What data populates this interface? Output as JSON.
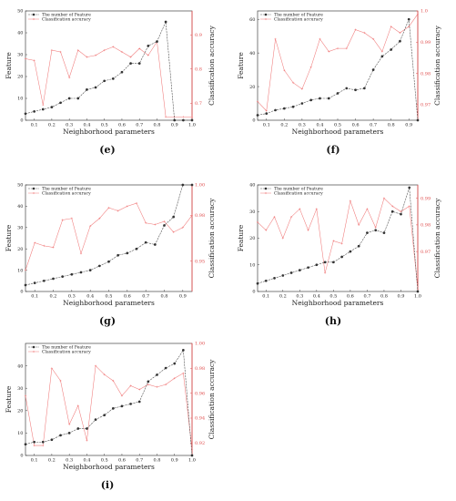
{
  "figure": {
    "colors": {
      "feature": "#333333",
      "accuracy": "#f07a7a",
      "axis_right": "#e05050"
    }
  },
  "chart_data": [
    {
      "type": "line",
      "panel_label": "(e)",
      "x": [
        0.05,
        0.1,
        0.15,
        0.2,
        0.25,
        0.3,
        0.35,
        0.4,
        0.45,
        0.5,
        0.55,
        0.6,
        0.65,
        0.7,
        0.75,
        0.8,
        0.85,
        0.9,
        0.95,
        1.0
      ],
      "xticks": [
        "0.1",
        "0.2",
        "0.3",
        "0.4",
        "0.5",
        "0.6",
        "0.7",
        "0.8",
        "0.9",
        "1.0"
      ],
      "xlim": [
        0.05,
        1.0
      ],
      "xlabel": "Neighborhood parameters",
      "ylabel_left": "Feature",
      "ylabel_right": "Classification accuracy",
      "ylim_left": [
        0,
        50
      ],
      "yticks_left": [
        "0",
        "10",
        "20",
        "30",
        "40",
        "50"
      ],
      "ylim_right": [
        0.65,
        0.97
      ],
      "yticks_right": [
        "0.7",
        "0.8",
        "0.9"
      ],
      "ytick_values_right": [
        0.7,
        0.8,
        0.9
      ],
      "series": [
        {
          "name": "The number of Feature",
          "axis": "left",
          "values": [
            3,
            4,
            5,
            6,
            8,
            10,
            10,
            14,
            15,
            18,
            19,
            22,
            26,
            26,
            34,
            36,
            45,
            0,
            0,
            0
          ]
        },
        {
          "name": "Classification accuracy",
          "axis": "right",
          "values": [
            0.83,
            0.825,
            0.695,
            0.855,
            0.85,
            0.775,
            0.855,
            0.835,
            0.84,
            0.855,
            0.865,
            0.85,
            0.835,
            0.86,
            0.84,
            0.88,
            0.66,
            0.66,
            0.66,
            0.66
          ]
        }
      ]
    },
    {
      "type": "line",
      "panel_label": "(f)",
      "x": [
        0.05,
        0.1,
        0.15,
        0.2,
        0.25,
        0.3,
        0.35,
        0.4,
        0.45,
        0.5,
        0.55,
        0.6,
        0.65,
        0.7,
        0.75,
        0.8,
        0.85,
        0.9,
        0.95
      ],
      "xticks": [
        "0.1",
        "0.2",
        "0.3",
        "0.4",
        "0.5",
        "0.6",
        "0.7",
        "0.8",
        "0.9"
      ],
      "xlim": [
        0.05,
        0.95
      ],
      "xlabel": "Neighborhood parameters",
      "ylabel_left": "Feature",
      "ylabel_right": "Classification accuracy",
      "ylim_left": [
        0,
        65
      ],
      "yticks_left": [
        "0",
        "20",
        "40",
        "60"
      ],
      "ylim_right": [
        0.965,
        1.0
      ],
      "yticks_right": [
        "0.97",
        "0.98",
        "0.99",
        "1.0"
      ],
      "ytick_values_right": [
        0.97,
        0.98,
        0.99,
        1.0
      ],
      "series": [
        {
          "name": "The number of Feature",
          "axis": "left",
          "values": [
            3,
            4,
            6,
            7,
            8,
            10,
            12,
            13,
            13,
            16,
            19,
            18,
            19,
            30,
            38,
            42,
            47,
            60,
            0
          ]
        },
        {
          "name": "Classification accuracy",
          "axis": "right",
          "values": [
            0.971,
            0.968,
            0.991,
            0.981,
            0.977,
            0.975,
            0.982,
            0.991,
            0.987,
            0.988,
            0.988,
            0.994,
            0.993,
            0.991,
            0.987,
            0.995,
            0.993,
            0.995,
            0.999
          ]
        }
      ]
    },
    {
      "type": "line",
      "panel_label": "(g)",
      "x": [
        0.05,
        0.1,
        0.15,
        0.2,
        0.25,
        0.3,
        0.35,
        0.4,
        0.45,
        0.5,
        0.55,
        0.6,
        0.65,
        0.7,
        0.75,
        0.8,
        0.85,
        0.9,
        0.95
      ],
      "xticks": [
        "0.1",
        "0.2",
        "0.3",
        "0.4",
        "0.5",
        "0.6",
        "0.7",
        "0.8",
        "0.9"
      ],
      "xlim": [
        0.05,
        0.95
      ],
      "xlabel": "Neighborhood parameters",
      "ylabel_left": "Feature",
      "ylabel_right": "Classification accuracy",
      "ylim_left": [
        0,
        50
      ],
      "yticks_left": [
        "0",
        "10",
        "20",
        "30",
        "40",
        "50"
      ],
      "ylim_right": [
        0.93,
        1.0
      ],
      "yticks_right": [
        "0.95",
        "0.98",
        "1.00"
      ],
      "ytick_values_right": [
        0.95,
        0.98,
        1.0
      ],
      "series": [
        {
          "name": "The number of Feature",
          "axis": "left",
          "values": [
            3,
            4,
            5,
            6,
            7,
            8,
            9,
            10,
            12,
            14,
            17,
            18,
            20,
            23,
            22,
            31,
            35,
            50,
            50
          ]
        },
        {
          "name": "Classification accuracy",
          "axis": "right",
          "values": [
            0.944,
            0.962,
            0.96,
            0.959,
            0.977,
            0.978,
            0.955,
            0.973,
            0.978,
            0.985,
            0.983,
            0.986,
            0.988,
            0.975,
            0.974,
            0.976,
            0.969,
            0.972,
            0.98
          ]
        }
      ]
    },
    {
      "type": "line",
      "panel_label": "(h)",
      "x": [
        0.05,
        0.1,
        0.15,
        0.2,
        0.25,
        0.3,
        0.35,
        0.4,
        0.45,
        0.5,
        0.55,
        0.6,
        0.65,
        0.7,
        0.75,
        0.8,
        0.85,
        0.9,
        0.95,
        1.0
      ],
      "xticks": [
        "0.1",
        "0.2",
        "0.3",
        "0.4",
        "0.5",
        "0.6",
        "0.7",
        "0.8",
        "0.9",
        "1.0"
      ],
      "xlim": [
        0.05,
        1.0
      ],
      "xlabel": "Neighborhood parameters",
      "ylabel_left": "Feature",
      "ylabel_right": "Classification accuracy",
      "ylim_left": [
        0,
        40
      ],
      "yticks_left": [
        "0",
        "10",
        "20",
        "30",
        "40"
      ],
      "ylim_right": [
        0.955,
        0.995
      ],
      "yticks_right": [
        "0.97",
        "0.98",
        "0.99"
      ],
      "ytick_values_right": [
        0.97,
        0.98,
        0.99
      ],
      "series": [
        {
          "name": "The number of Feature",
          "axis": "left",
          "values": [
            3,
            4,
            5,
            6,
            7,
            8,
            9,
            10,
            11,
            11,
            13,
            15,
            17,
            22,
            23,
            22,
            30,
            29,
            39,
            0
          ]
        },
        {
          "name": "Classification accuracy",
          "axis": "right",
          "values": [
            0.981,
            0.978,
            0.983,
            0.975,
            0.983,
            0.986,
            0.978,
            0.986,
            0.962,
            0.974,
            0.973,
            0.989,
            0.98,
            0.986,
            0.979,
            0.99,
            0.987,
            0.985,
            0.987,
            0.956
          ]
        }
      ]
    },
    {
      "type": "line",
      "panel_label": "(i)",
      "x": [
        0.05,
        0.1,
        0.15,
        0.2,
        0.25,
        0.3,
        0.35,
        0.4,
        0.45,
        0.5,
        0.55,
        0.6,
        0.65,
        0.7,
        0.75,
        0.8,
        0.85,
        0.9,
        0.95,
        1.0
      ],
      "xticks": [
        "0.1",
        "0.2",
        "0.3",
        "0.4",
        "0.5",
        "0.6",
        "0.7",
        "0.8",
        "0.9",
        "1.0"
      ],
      "xlim": [
        0.05,
        1.0
      ],
      "xlabel": "Neighborhood parameters",
      "ylabel_left": "Feature",
      "ylabel_right": "Classification accuracy",
      "ylim_left": [
        0,
        50
      ],
      "yticks_left": [
        "0",
        "10",
        "20",
        "30",
        "40"
      ],
      "ylim_right": [
        0.91,
        1.0
      ],
      "yticks_right": [
        "0.92",
        "0.94",
        "0.96",
        "0.98",
        "1.00"
      ],
      "ytick_values_right": [
        0.92,
        0.94,
        0.96,
        0.98,
        1.0
      ],
      "series": [
        {
          "name": "The number of Feature",
          "axis": "left",
          "values": [
            5,
            6,
            6,
            7,
            9,
            10,
            12,
            12,
            16,
            18,
            21,
            22,
            23,
            24,
            33,
            36,
            39,
            41,
            47,
            0
          ]
        },
        {
          "name": "Classification accuracy",
          "axis": "right",
          "values": [
            0.958,
            0.918,
            0.918,
            0.98,
            0.97,
            0.935,
            0.95,
            0.922,
            0.982,
            0.975,
            0.97,
            0.958,
            0.966,
            0.963,
            0.967,
            0.965,
            0.967,
            0.972,
            0.976,
            0.915
          ]
        }
      ]
    }
  ]
}
